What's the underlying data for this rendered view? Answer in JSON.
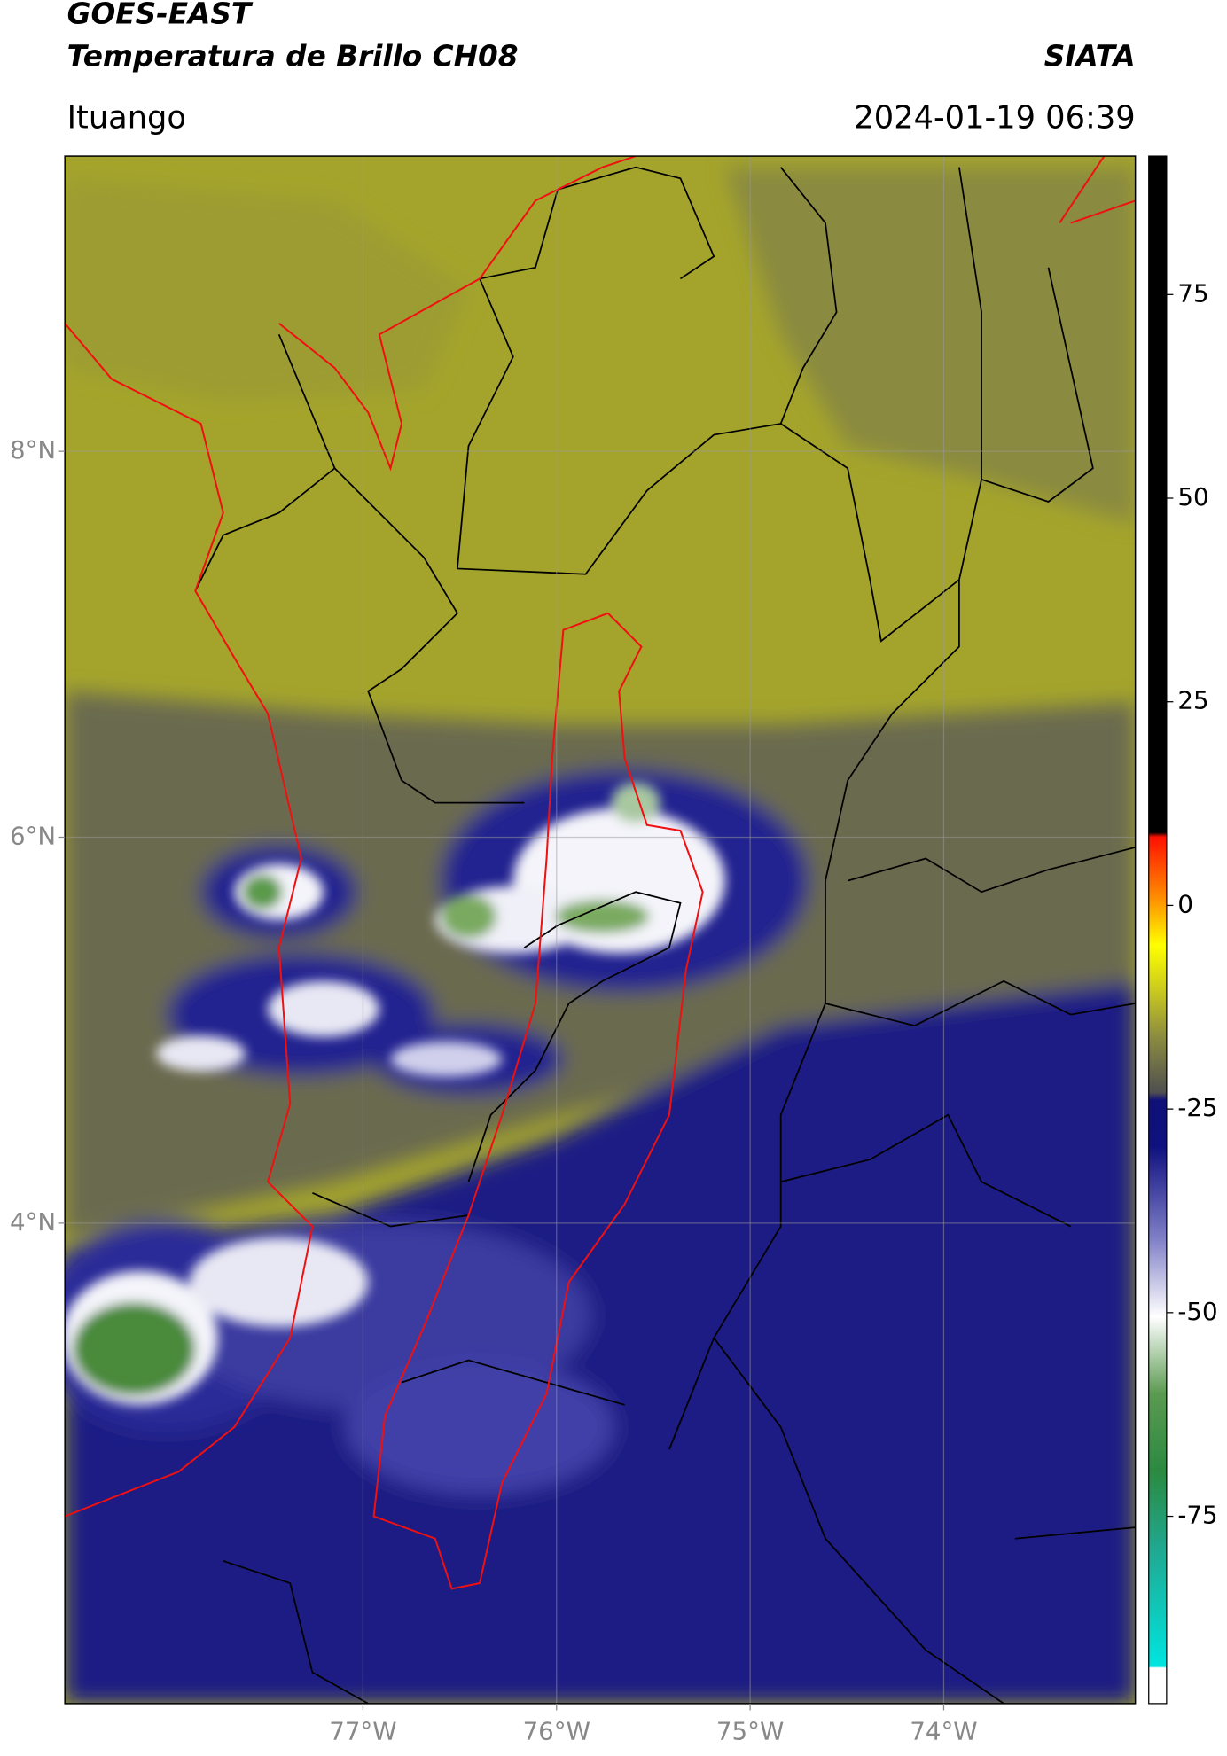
{
  "header": {
    "title": "GOES-EAST",
    "subtitle": "Temperatura de Brillo CH08",
    "brand": "SIATA",
    "location": "Ituango",
    "timestamp": "2024-01-19 06:39"
  },
  "chart_data": {
    "type": "map",
    "xlim": [
      -78.54,
      -73.01
    ],
    "ylim": [
      1.51,
      9.53
    ],
    "xticks": [
      {
        "value": -77,
        "label": "77°W"
      },
      {
        "value": -76,
        "label": "76°W"
      },
      {
        "value": -75,
        "label": "75°W"
      },
      {
        "value": -74,
        "label": "74°W"
      }
    ],
    "yticks": [
      {
        "value": 8,
        "label": "8°N"
      },
      {
        "value": 6,
        "label": "6°N"
      },
      {
        "value": 4,
        "label": "4°N"
      }
    ],
    "grid": true,
    "colorbar": {
      "lim": [
        -98,
        92
      ],
      "ticks": [
        75,
        50,
        25,
        0,
        -25,
        -50,
        -75
      ]
    }
  }
}
